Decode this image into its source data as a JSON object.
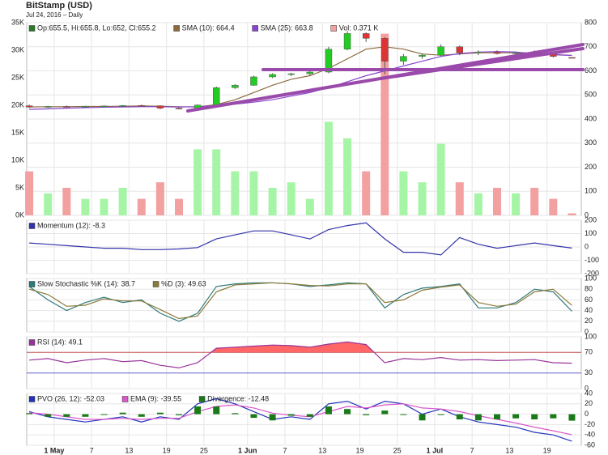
{
  "chart_data": [
    {
      "type": "candlestick",
      "title": "BitStamp (USD)",
      "subtitle": "Jul 24, 2016 – Daily",
      "ohlc_label": "Op:655.5, Hi:655.8, Lo:652, Cl:655.2",
      "ohlc_color": "#2a7a2a",
      "x": [
        0,
        3,
        6,
        9,
        12,
        15,
        18,
        21,
        24,
        27,
        30,
        33,
        36,
        39,
        42,
        45,
        48,
        51,
        54,
        57,
        60,
        63,
        66,
        69,
        72,
        75,
        78,
        81,
        84,
        87
      ],
      "xlim": [
        -0.4,
        88.5
      ],
      "open": [
        455,
        450,
        452,
        451,
        453,
        454,
        456,
        455,
        445,
        444,
        458,
        530,
        540,
        575,
        585,
        588,
        595,
        690,
        755,
        735,
        640,
        660,
        665,
        700,
        675,
        678,
        672,
        675,
        670,
        655.5
      ],
      "high": [
        460,
        455,
        456,
        455,
        457,
        458,
        460,
        457,
        450,
        460,
        535,
        545,
        580,
        590,
        592,
        600,
        700,
        765,
        760,
        740,
        670,
        672,
        710,
        705,
        685,
        685,
        680,
        685,
        675,
        655.8
      ],
      "low": [
        445,
        446,
        449,
        448,
        450,
        451,
        452,
        440,
        440,
        442,
        455,
        525,
        538,
        570,
        578,
        580,
        590,
        685,
        720,
        585,
        625,
        650,
        660,
        665,
        665,
        668,
        665,
        668,
        655,
        652
      ],
      "close": [
        450,
        452,
        451,
        453,
        454,
        456,
        455,
        445,
        444,
        458,
        530,
        540,
        575,
        585,
        588,
        595,
        690,
        755,
        735,
        640,
        660,
        665,
        700,
        675,
        678,
        672,
        675,
        670,
        660,
        655.2
      ],
      "up_color": "#22cc22",
      "down_color": "#dd3333",
      "ylim": [
        0,
        800
      ],
      "yticks": [
        0,
        100,
        200,
        300,
        400,
        500,
        600,
        700,
        800
      ],
      "series": [
        {
          "name": "SMA (10): 664.4",
          "color": "#8b6b3d",
          "values": [
            450,
            451,
            451,
            452,
            452,
            453,
            454,
            453,
            451,
            450,
            460,
            480,
            510,
            540,
            565,
            580,
            610,
            650,
            690,
            700,
            690,
            670,
            665,
            670,
            675,
            675,
            675,
            672,
            668,
            664.4
          ]
        },
        {
          "name": "SMA (25): 663.8",
          "color": "#8844cc",
          "values": [
            440,
            442,
            445,
            447,
            449,
            450,
            451,
            451,
            450,
            451,
            455,
            462,
            470,
            480,
            495,
            510,
            530,
            555,
            580,
            600,
            620,
            640,
            660,
            672,
            678,
            680,
            678,
            672,
            667,
            663.8
          ]
        }
      ],
      "volume": {
        "name": "Vol: 0.371 K",
        "axis": "y2",
        "up_color": "#a6f5a6",
        "down_color": "#f2a0a0",
        "values": [
          8,
          4,
          5,
          3,
          3,
          5,
          3,
          6,
          3,
          12,
          12,
          8,
          8,
          5,
          6,
          3,
          17,
          14,
          8,
          33,
          8,
          6,
          13,
          6,
          4,
          5,
          4,
          5,
          3,
          0.371
        ]
      },
      "y2lim": [
        0,
        35
      ],
      "y2ticks": [
        {
          "value": 0,
          "label": "0K"
        },
        {
          "value": 5,
          "label": "5K"
        },
        {
          "value": 10,
          "label": "10K"
        },
        {
          "value": 15,
          "label": "15K"
        },
        {
          "value": 20,
          "label": "20K"
        },
        {
          "value": 25,
          "label": "25K"
        },
        {
          "value": 30,
          "label": "30K"
        },
        {
          "value": 35,
          "label": "35K"
        }
      ]
    },
    {
      "type": "line",
      "x": [
        0,
        3,
        6,
        9,
        12,
        15,
        18,
        21,
        24,
        27,
        30,
        33,
        36,
        39,
        42,
        45,
        48,
        51,
        54,
        57,
        60,
        63,
        66,
        69,
        72,
        75,
        78,
        81,
        84,
        87
      ],
      "xlim": [
        -0.4,
        88.5
      ],
      "ylim": [
        -200,
        200
      ],
      "yticks": [
        -200,
        -100,
        0,
        100,
        200
      ],
      "series": [
        {
          "name": "Momentum (12): -8.3",
          "color": "#3333aa",
          "values": [
            30,
            20,
            10,
            0,
            -10,
            -10,
            -20,
            -20,
            -15,
            -5,
            60,
            90,
            120,
            120,
            90,
            60,
            130,
            160,
            180,
            60,
            -40,
            -40,
            -60,
            70,
            20,
            -10,
            10,
            30,
            10,
            -8.3
          ]
        }
      ]
    },
    {
      "type": "line",
      "x": [
        0,
        3,
        6,
        9,
        12,
        15,
        18,
        21,
        24,
        27,
        30,
        33,
        36,
        39,
        42,
        45,
        48,
        51,
        54,
        57,
        60,
        63,
        66,
        69,
        72,
        75,
        78,
        81,
        84,
        87
      ],
      "xlim": [
        -0.4,
        88.5
      ],
      "ylim": [
        0,
        100
      ],
      "yticks": [
        0,
        20,
        40,
        60,
        80,
        100
      ],
      "series": [
        {
          "name": "Slow Stochastic %K (14): 38.7",
          "color": "#2f7a7a",
          "values": [
            85,
            60,
            40,
            55,
            65,
            55,
            60,
            35,
            20,
            35,
            85,
            90,
            92,
            92,
            90,
            85,
            88,
            92,
            90,
            45,
            70,
            82,
            85,
            90,
            45,
            45,
            55,
            80,
            75,
            38.7
          ]
        },
        {
          "name": "%D (3): 49.63",
          "color": "#8b7a3a",
          "values": [
            80,
            70,
            48,
            50,
            62,
            58,
            58,
            42,
            25,
            30,
            75,
            88,
            90,
            92,
            90,
            87,
            86,
            90,
            90,
            55,
            60,
            78,
            84,
            88,
            55,
            48,
            52,
            75,
            80,
            49.63
          ]
        }
      ]
    },
    {
      "type": "line",
      "x": [
        0,
        3,
        6,
        9,
        12,
        15,
        18,
        21,
        24,
        27,
        30,
        33,
        36,
        39,
        42,
        45,
        48,
        51,
        54,
        57,
        60,
        63,
        66,
        69,
        72,
        75,
        78,
        81,
        84,
        87
      ],
      "xlim": [
        -0.4,
        88.5
      ],
      "ylim": [
        0,
        100
      ],
      "yticks": [
        0,
        30,
        70,
        100
      ],
      "reference_lines": [
        {
          "value": 70,
          "color": "#c05050"
        },
        {
          "value": 30,
          "color": "#6666cc"
        }
      ],
      "fill_above": {
        "value": 70,
        "color": "#ff6666"
      },
      "series": [
        {
          "name": "RSI (14): 49.1",
          "color": "#993399",
          "values": [
            55,
            58,
            50,
            55,
            58,
            52,
            54,
            45,
            40,
            50,
            78,
            80,
            82,
            84,
            83,
            80,
            86,
            90,
            85,
            50,
            58,
            56,
            60,
            55,
            56,
            54,
            55,
            56,
            50,
            49.1
          ]
        }
      ]
    },
    {
      "type": "line",
      "x": [
        0,
        3,
        6,
        9,
        12,
        15,
        18,
        21,
        24,
        27,
        30,
        33,
        36,
        39,
        42,
        45,
        48,
        51,
        54,
        57,
        60,
        63,
        66,
        69,
        72,
        75,
        78,
        81,
        84,
        87
      ],
      "xlim": [
        -0.4,
        88.5
      ],
      "ylim": [
        -60,
        40
      ],
      "yticks": [
        -60,
        -40,
        -20,
        0,
        20,
        40
      ],
      "xticks": [
        {
          "value": 4,
          "label": "1 May"
        },
        {
          "value": 10,
          "label": "7"
        },
        {
          "value": 16,
          "label": "13"
        },
        {
          "value": 22,
          "label": "19"
        },
        {
          "value": 28,
          "label": "25"
        },
        {
          "value": 35,
          "label": "1 Jun"
        },
        {
          "value": 41,
          "label": "7"
        },
        {
          "value": 47,
          "label": "13"
        },
        {
          "value": 53,
          "label": "19"
        },
        {
          "value": 59,
          "label": "25"
        },
        {
          "value": 65,
          "label": "1 Jul"
        },
        {
          "value": 71,
          "label": "7"
        },
        {
          "value": 77,
          "label": "13"
        },
        {
          "value": 83,
          "label": "19"
        }
      ],
      "series": [
        {
          "name": "PVO (26, 12): -52.03",
          "color": "#2233bb",
          "values": [
            5,
            -5,
            -10,
            -15,
            -10,
            -5,
            -15,
            -5,
            -10,
            20,
            30,
            20,
            5,
            -10,
            -5,
            -10,
            20,
            25,
            10,
            25,
            20,
            0,
            10,
            -5,
            -15,
            -20,
            -25,
            -35,
            -40,
            -52.03
          ]
        },
        {
          "name": "EMA (9): -39.55",
          "color": "#dd55cc",
          "values": [
            3,
            0,
            -5,
            -10,
            -10,
            -8,
            -10,
            -8,
            -8,
            5,
            15,
            18,
            12,
            2,
            -2,
            -5,
            5,
            15,
            12,
            18,
            20,
            12,
            10,
            5,
            -3,
            -10,
            -17,
            -25,
            -32,
            -39.55
          ]
        },
        {
          "name": "Divergence: -12.48",
          "color": "#1a7a1a",
          "type": "bar",
          "values": [
            2,
            -5,
            -5,
            -5,
            0,
            3,
            -5,
            3,
            -2,
            15,
            15,
            2,
            -7,
            -12,
            -3,
            -5,
            15,
            10,
            -2,
            7,
            0,
            -12,
            0,
            -10,
            -12,
            -10,
            -8,
            -10,
            -8,
            -12.48
          ]
        }
      ]
    }
  ]
}
